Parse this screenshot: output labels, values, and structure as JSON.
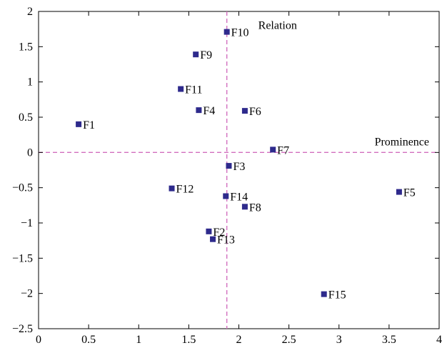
{
  "chart_data": {
    "type": "scatter",
    "title": "",
    "xlabel": "",
    "ylabel": "",
    "xlim": [
      0,
      4
    ],
    "ylim": [
      -2.5,
      2
    ],
    "xticks": [
      0,
      0.5,
      1,
      1.5,
      2,
      2.5,
      3,
      3.5,
      4
    ],
    "xtick_labels": [
      "0",
      "0.5",
      "1",
      "1.5",
      "2",
      "2.5",
      "3",
      "3.5",
      "4"
    ],
    "yticks": [
      2,
      1.5,
      1,
      0.5,
      0,
      -0.5,
      -1,
      -1.5,
      -2,
      -2.5
    ],
    "ytick_labels": [
      "2",
      "1.5",
      "1",
      "0.5",
      "0",
      "−0.5",
      "−1",
      "−1.5",
      "−2",
      "−2.5"
    ],
    "grid": false,
    "marker_color": "#2e2a8c",
    "reference_line_color": "#d26fbf",
    "reference_lines": {
      "vertical_x": 1.88,
      "horizontal_y": 0
    },
    "annotations": {
      "vertical_line_label": "Relation",
      "horizontal_line_label": "Prominence"
    },
    "points": [
      {
        "label": "F1",
        "x": 0.4,
        "y": 0.4
      },
      {
        "label": "F2",
        "x": 1.7,
        "y": -1.12
      },
      {
        "label": "F3",
        "x": 1.9,
        "y": -0.19
      },
      {
        "label": "F4",
        "x": 1.6,
        "y": 0.6
      },
      {
        "label": "F5",
        "x": 3.6,
        "y": -0.56
      },
      {
        "label": "F6",
        "x": 2.06,
        "y": 0.59
      },
      {
        "label": "F7",
        "x": 2.34,
        "y": 0.04
      },
      {
        "label": "F8",
        "x": 2.06,
        "y": -0.77
      },
      {
        "label": "F9",
        "x": 1.57,
        "y": 1.39
      },
      {
        "label": "F10",
        "x": 1.88,
        "y": 1.71
      },
      {
        "label": "F11",
        "x": 1.42,
        "y": 0.9
      },
      {
        "label": "F12",
        "x": 1.33,
        "y": -0.51
      },
      {
        "label": "F13",
        "x": 1.74,
        "y": -1.23
      },
      {
        "label": "F14",
        "x": 1.87,
        "y": -0.62
      },
      {
        "label": "F15",
        "x": 2.85,
        "y": -2.01
      }
    ]
  }
}
